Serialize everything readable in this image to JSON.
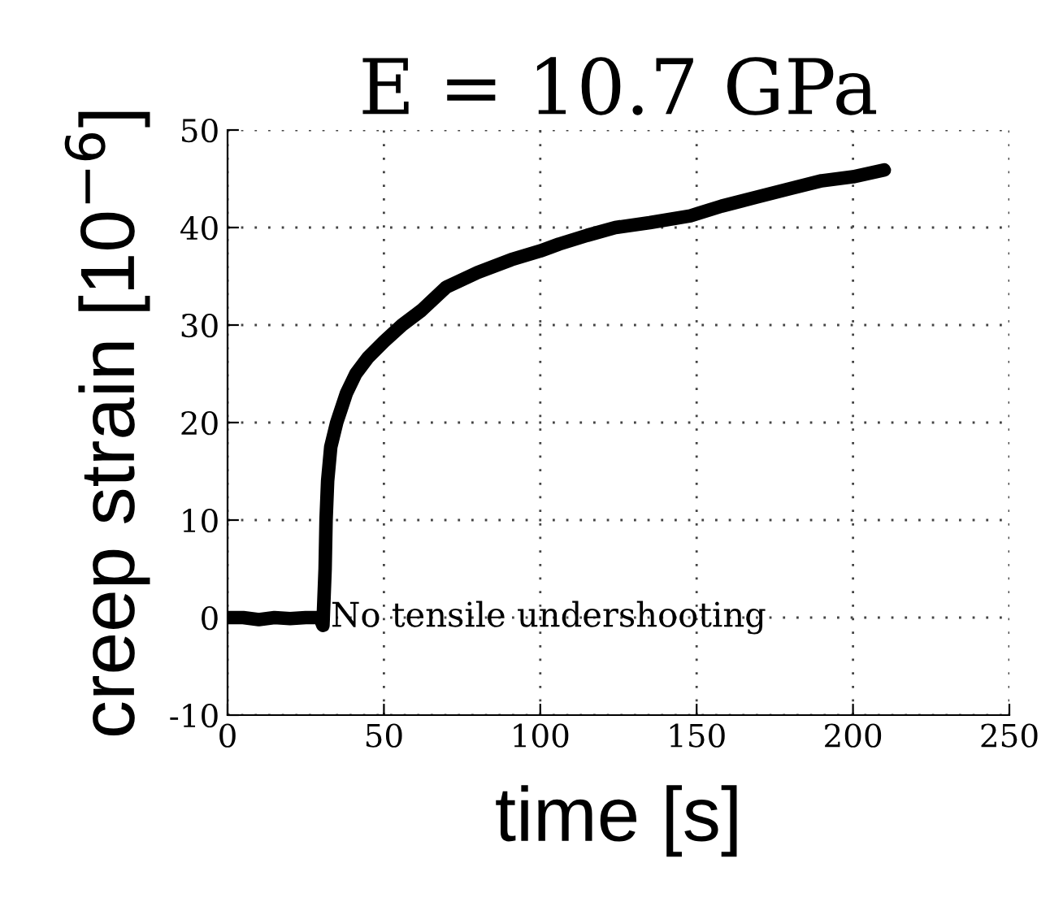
{
  "chart_data": {
    "type": "line",
    "title": "E = 10.7 GPa",
    "xlabel": "time [s]",
    "ylabel": "creep strain [10$^{−6}$]",
    "x": [
      0,
      5,
      10,
      15,
      20,
      25,
      29.5,
      30.5,
      31.2,
      31.5,
      32,
      33,
      34.9,
      38,
      41,
      45,
      50,
      55.8,
      62,
      70,
      80,
      90.7,
      100,
      106,
      115,
      124,
      135,
      148,
      158,
      169,
      180,
      190,
      200,
      210
    ],
    "series": [
      {
        "color": "#000000",
        "values": [
          0,
          0,
          -0.2,
          0,
          -0.1,
          0,
          0,
          -0.8,
          5,
          10,
          14,
          17.5,
          20,
          23,
          25,
          26.7,
          28.3,
          30,
          31.5,
          33.9,
          35.4,
          36.7,
          37.6,
          38.3,
          39.2,
          40,
          40.5,
          41.2,
          42.2,
          43.1,
          44,
          44.8,
          45.2,
          45.9
        ]
      }
    ],
    "xlim": [
      0,
      250
    ],
    "ylim": [
      -10,
      50
    ],
    "xticks": [
      0,
      50,
      100,
      150,
      200,
      250
    ],
    "yticks": [
      -10,
      0,
      10,
      20,
      30,
      40,
      50
    ],
    "grid": true,
    "line_style": "solid",
    "marker": "none",
    "annotations": [
      {
        "text": "No tensile undershooting",
        "x": 33,
        "y": 0
      }
    ]
  }
}
